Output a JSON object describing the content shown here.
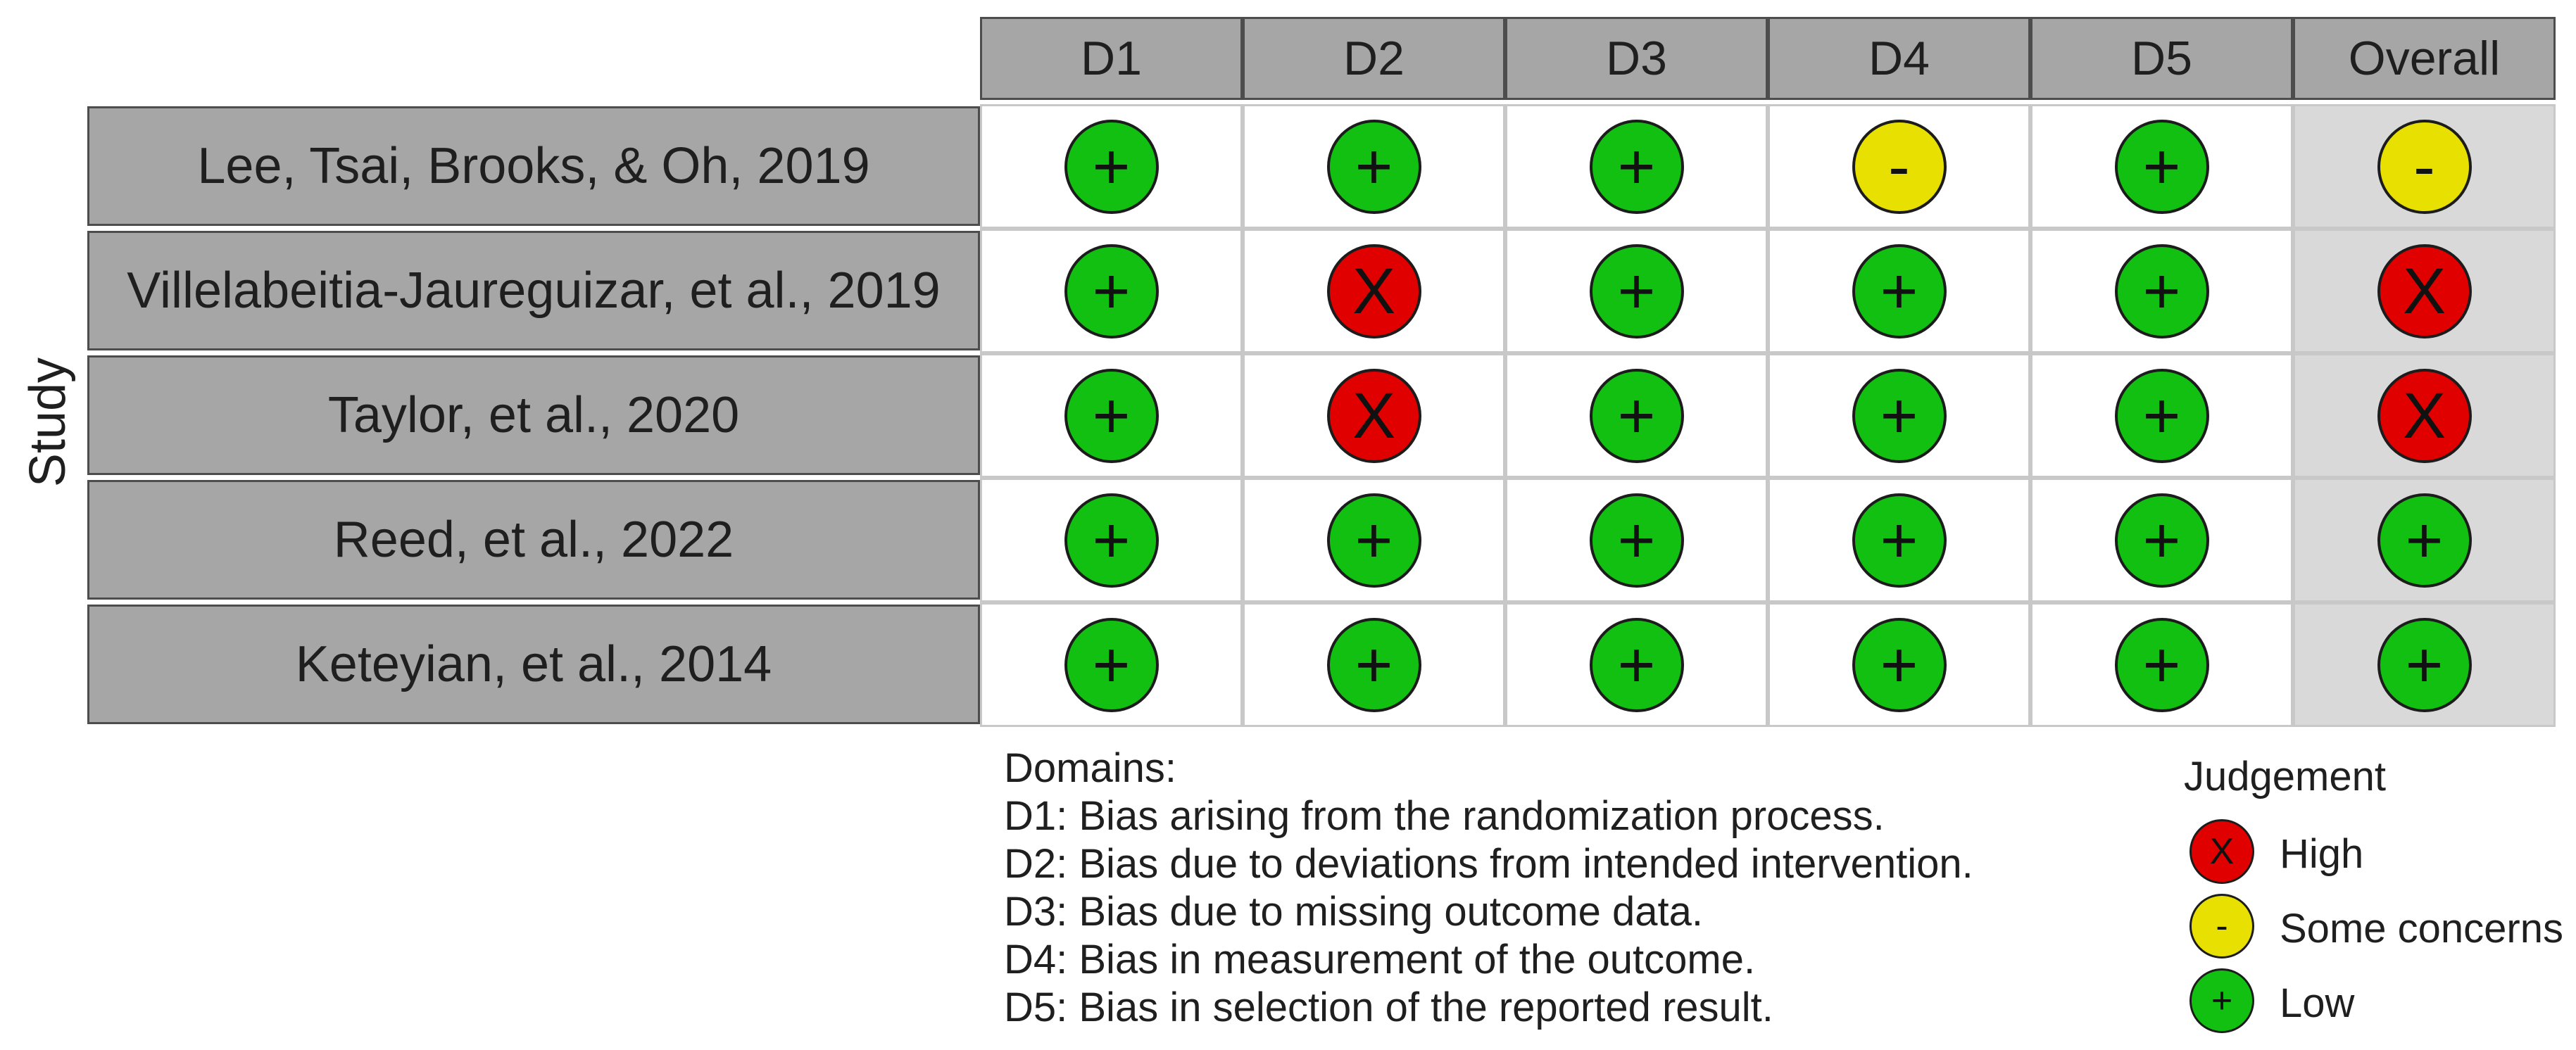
{
  "figure": {
    "y_axis_label": "Study",
    "columns": [
      "D1",
      "D2",
      "D3",
      "D4",
      "D5",
      "Overall"
    ],
    "studies": [
      "Lee, Tsai, Brooks, & Oh, 2019",
      "Villelabeitia-Jaureguizar, et al., 2019",
      "Taylor, et al., 2020",
      "Reed, et al., 2022",
      "Keteyian, et al., 2014"
    ],
    "judgements": [
      [
        "Low",
        "Low",
        "Low",
        "Some concerns",
        "Low",
        "Some concerns"
      ],
      [
        "Low",
        "High",
        "Low",
        "Low",
        "Low",
        "High"
      ],
      [
        "Low",
        "High",
        "Low",
        "Low",
        "Low",
        "High"
      ],
      [
        "Low",
        "Low",
        "Low",
        "Low",
        "Low",
        "Low"
      ],
      [
        "Low",
        "Low",
        "Low",
        "Low",
        "Low",
        "Low"
      ]
    ]
  },
  "domains": {
    "heading": "Domains:",
    "items": [
      "D1: Bias arising from the randomization process.",
      "D2: Bias due to deviations from intended intervention.",
      "D3: Bias due to missing outcome data.",
      "D4: Bias in measurement of the outcome.",
      "D5: Bias in selection of the reported result."
    ]
  },
  "legend": {
    "title": "Judgement",
    "items": [
      {
        "label": "High",
        "symbol": "X",
        "color": "#e00000"
      },
      {
        "label": "Some concerns",
        "symbol": "-",
        "color": "#e8e000"
      },
      {
        "label": "Low",
        "symbol": "+",
        "color": "#12c012"
      }
    ]
  }
}
